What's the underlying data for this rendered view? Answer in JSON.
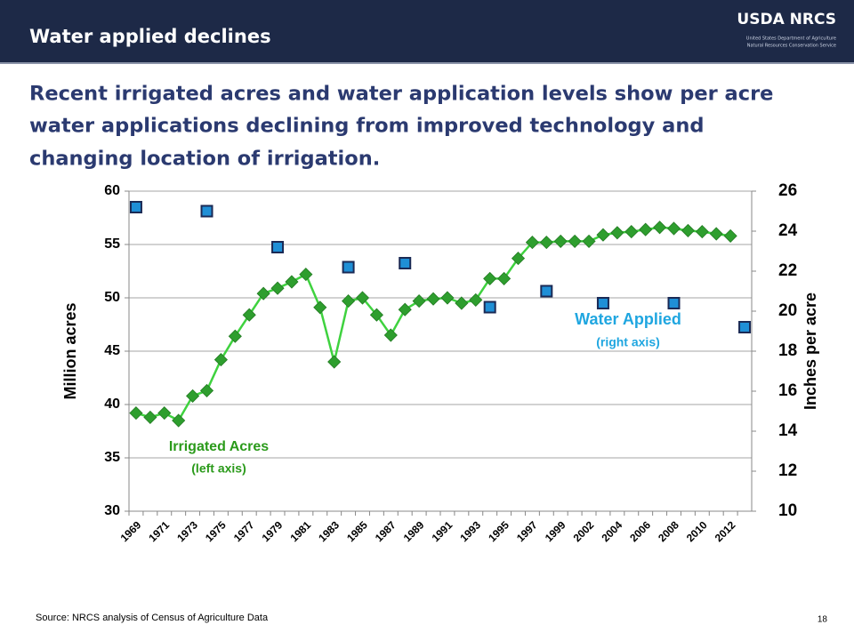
{
  "header": {
    "title": "Water applied declines",
    "logo": "USDA NRCS",
    "logo_subtext": [
      "United States Department of Agriculture",
      "Natural Resources Conservation Service"
    ]
  },
  "subtitle_lines": [
    "Recent irrigated acres and water application levels show per acre",
    "water applications declining from improved technology and",
    "changing location of irrigation."
  ],
  "chart_data": {
    "type": "line",
    "categories": [
      "1969",
      null,
      "1971",
      null,
      "1973",
      null,
      "1975",
      null,
      "1977",
      null,
      "1979",
      null,
      "1981",
      null,
      "1983",
      null,
      "1985",
      null,
      "1987",
      null,
      "1989",
      null,
      "1991",
      null,
      "1993",
      null,
      "1995",
      null,
      "1997",
      null,
      "1999",
      null,
      "2002",
      null,
      "2004",
      null,
      "2006",
      null,
      "2008",
      null,
      "2010",
      null,
      "2012",
      null
    ],
    "series": [
      {
        "name": "Irrigated Acres",
        "color": "#2e9e2e",
        "line_color": "#3fd23f",
        "marker": "diamond",
        "values": [
          39.2,
          38.8,
          39.2,
          38.5,
          40.8,
          41.3,
          44.2,
          46.4,
          48.4,
          50.4,
          50.9,
          51.5,
          52.2,
          49.1,
          44.0,
          49.7,
          50.0,
          48.4,
          46.5,
          48.9,
          49.7,
          49.9,
          50.0,
          49.5,
          49.8,
          51.8,
          51.8,
          53.7,
          55.2,
          55.2,
          55.3,
          55.3,
          55.3,
          55.9,
          56.1,
          56.2,
          56.4,
          56.6,
          56.5,
          56.3,
          56.2,
          56.0,
          55.8,
          null
        ]
      },
      {
        "name": "Water Applied",
        "color": "#1f8fd6",
        "marker": "square",
        "axis": "y2",
        "values": [
          25.2,
          null,
          null,
          null,
          null,
          25.0,
          null,
          null,
          null,
          null,
          23.2,
          null,
          null,
          null,
          null,
          22.2,
          null,
          null,
          null,
          22.4,
          null,
          null,
          null,
          null,
          null,
          20.2,
          null,
          null,
          null,
          21.0,
          null,
          null,
          null,
          20.4,
          null,
          null,
          null,
          null,
          20.4,
          null,
          null,
          null,
          null,
          19.2
        ]
      }
    ],
    "annotations": [
      "(left axis)",
      "(right axis)"
    ],
    "ylabel": "Million acres",
    "y2label": "Inches per acre",
    "ylim": [
      30,
      60
    ],
    "yticks": [
      30,
      35,
      40,
      45,
      50,
      55,
      60
    ],
    "y2lim": [
      10,
      26
    ],
    "y2ticks": [
      10,
      12,
      14,
      16,
      18,
      20,
      22,
      24,
      26
    ],
    "grid": true
  },
  "footer": {
    "source": "Source: NRCS analysis of Census of Agriculture Data",
    "page": "18"
  }
}
